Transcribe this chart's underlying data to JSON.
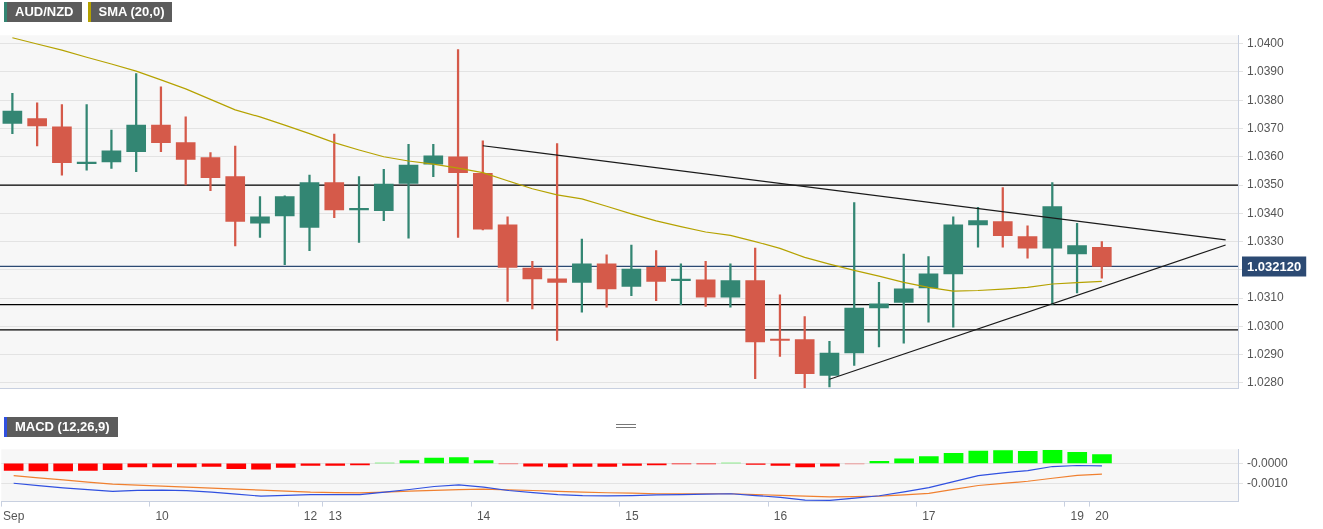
{
  "chart_data": [
    {
      "type": "candlestick",
      "ylim": [
        1.0278,
        1.0403
      ],
      "categories": [
        null,
        null,
        null,
        null,
        null,
        null,
        null,
        null,
        null,
        null,
        null,
        null,
        null,
        null,
        null,
        null,
        null,
        null,
        null,
        null,
        null,
        null,
        null,
        null,
        null,
        null,
        null,
        null,
        null,
        null,
        null,
        null,
        null,
        null,
        null,
        null,
        null,
        null,
        null,
        null,
        null,
        null,
        null,
        null,
        null,
        null,
        null,
        null,
        null,
        null
      ],
      "yticks": [
        {
          "value": 1.028,
          "label": "1.0280"
        },
        {
          "value": 1.029,
          "label": "1.0290"
        },
        {
          "value": 1.03,
          "label": "1.0300"
        },
        {
          "value": 1.031,
          "label": "1.0310"
        },
        {
          "value": 1.032,
          "label": null
        },
        {
          "value": 1.033,
          "label": "1.0330"
        },
        {
          "value": 1.034,
          "label": "1.0340"
        },
        {
          "value": 1.035,
          "label": "1.0350"
        },
        {
          "value": 1.036,
          "label": "1.0360"
        },
        {
          "value": 1.037,
          "label": "1.0370"
        },
        {
          "value": 1.038,
          "label": "1.0380"
        },
        {
          "value": 1.039,
          "label": "1.0390"
        },
        {
          "value": 1.04,
          "label": "1.0400"
        }
      ],
      "grid": "y",
      "legend": "top left",
      "marker": "none",
      "series": [
        {
          "name": "AUD/NZD",
          "color": "#338673",
          "colors": [
            "#338673",
            "#d55a4a",
            "#d55a4a",
            "#338673",
            "#338673",
            "#338673",
            "#d55a4a",
            "#d55a4a",
            "#d55a4a",
            "#d55a4a",
            "#338673",
            "#338673",
            "#338673",
            "#d55a4a",
            "#338673",
            "#338673",
            "#338673",
            "#338673",
            "#d55a4a",
            "#d55a4a",
            "#d55a4a",
            "#d55a4a",
            "#d55a4a",
            "#338673",
            "#d55a4a",
            "#338673",
            "#d55a4a",
            "#338673",
            "#d55a4a",
            "#338673",
            "#d55a4a",
            "#d55a4a",
            "#d55a4a",
            "#338673",
            "#338673",
            "#338673",
            "#338673",
            "#338673",
            "#338673",
            "#338673",
            "#d55a4a",
            "#d55a4a",
            "#338673",
            "#338673",
            "#d55a4a",
            null,
            null,
            null,
            null,
            null
          ],
          "ohlc": [
            [
              1.03718,
              1.03824,
              1.03682,
              1.03762
            ],
            [
              1.03735,
              1.03791,
              1.03638,
              1.03709
            ],
            [
              1.03706,
              1.03785,
              1.03535,
              1.03579
            ],
            [
              1.03576,
              1.03785,
              1.03553,
              1.03579
            ],
            [
              1.03582,
              1.03694,
              1.03559,
              1.03621
            ],
            [
              1.03618,
              1.03894,
              1.03547,
              1.03712
            ],
            [
              1.03712,
              1.03847,
              1.03618,
              1.0365
            ],
            [
              1.0365,
              1.03741,
              1.035,
              1.03591
            ],
            [
              1.03597,
              1.03615,
              1.0348,
              1.03526
            ],
            [
              1.0353,
              1.03638,
              1.03285,
              1.03371
            ],
            [
              1.03365,
              1.03459,
              1.03315,
              1.03388
            ],
            [
              1.03391,
              1.03462,
              1.03218,
              1.03459
            ],
            [
              1.0335,
              1.03535,
              1.03268,
              1.03509
            ],
            [
              1.03509,
              1.0368,
              1.03385,
              1.03412
            ],
            [
              1.03412,
              1.0353,
              1.03297,
              1.03415
            ],
            [
              1.03409,
              1.03556,
              1.03374,
              1.03503
            ],
            [
              1.03506,
              1.03644,
              1.03312,
              1.03571
            ],
            [
              1.03574,
              1.03644,
              1.0353,
              1.03603
            ],
            [
              1.036,
              1.03979,
              1.03315,
              1.03544
            ],
            [
              1.03541,
              1.03656,
              1.03341,
              1.03344
            ],
            [
              1.03359,
              1.03388,
              1.03088,
              1.03209
            ],
            [
              1.03206,
              1.0323,
              1.03062,
              1.03168
            ],
            [
              1.03168,
              1.03647,
              1.0295,
              1.03156
            ],
            [
              1.03156,
              1.03309,
              1.0305,
              1.03221
            ],
            [
              1.03221,
              1.03253,
              1.03068,
              1.03133
            ],
            [
              1.03141,
              1.03288,
              1.03109,
              1.03203
            ],
            [
              1.03209,
              1.03268,
              1.03091,
              1.03159
            ],
            [
              1.03162,
              1.03221,
              1.03077,
              1.03165
            ],
            [
              1.03165,
              1.0323,
              1.03071,
              1.03103
            ],
            [
              1.03103,
              1.03221,
              1.03068,
              1.03162
            ],
            [
              1.03162,
              1.03277,
              1.02815,
              1.02945
            ],
            [
              1.02953,
              1.03112,
              1.02894,
              1.0295
            ],
            [
              1.02953,
              1.03035,
              1.02783,
              1.02833
            ],
            [
              1.02827,
              1.02947,
              1.02786,
              1.02906
            ],
            [
              1.02906,
              1.03438,
              1.02862,
              1.03065
            ],
            [
              1.03065,
              1.03156,
              1.02927,
              1.0308
            ],
            [
              1.03085,
              1.03256,
              1.02941,
              1.03133
            ],
            [
              1.03136,
              1.03247,
              1.03015,
              1.03186
            ],
            [
              1.03186,
              1.03388,
              1.02997,
              1.03359
            ],
            [
              1.03359,
              1.03421,
              1.0328,
              1.03374
            ],
            [
              1.03371,
              1.03491,
              1.0328,
              1.03321
            ],
            [
              1.03318,
              1.03356,
              1.03241,
              1.03277
            ],
            [
              1.03277,
              1.03509,
              1.03077,
              1.03424
            ],
            [
              1.03256,
              1.03365,
              1.03118,
              1.03286
            ],
            [
              1.0328,
              1.033,
              1.03171,
              1.03212
            ],
            null,
            null,
            null,
            null,
            null
          ]
        },
        {
          "name": "SMA (20,0)",
          "type": "line",
          "color": "#b5a200",
          "values": [
            1.04021,
            1.03999,
            1.03977,
            1.03952,
            1.03928,
            1.03903,
            1.03872,
            1.0384,
            1.03803,
            1.03766,
            1.03741,
            1.03712,
            1.03682,
            1.0365,
            1.03624,
            1.036,
            1.03585,
            1.03574,
            1.0356,
            1.03544,
            1.03515,
            1.03487,
            1.03465,
            1.03451,
            1.03425,
            1.03398,
            1.03373,
            1.03353,
            1.03334,
            1.03322,
            1.033,
            1.03276,
            1.03244,
            1.0322,
            1.03198,
            1.03178,
            1.03156,
            1.03138,
            1.03125,
            1.03127,
            1.03132,
            1.03138,
            1.0315,
            1.03155,
            1.03159,
            null,
            null,
            null,
            null,
            null
          ]
        },
        {
          "type": "line",
          "color": "#1a1a1a",
          "values": [
            null,
            null,
            null,
            null,
            null,
            null,
            null,
            null,
            null,
            null,
            null,
            null,
            null,
            null,
            null,
            null,
            null,
            null,
            null,
            1.03639,
            null,
            null,
            null,
            null,
            null,
            null,
            null,
            null,
            null,
            null,
            null,
            null,
            null,
            null,
            null,
            null,
            null,
            null,
            null,
            null,
            null,
            null,
            null,
            null,
            null,
            null,
            null,
            null,
            null,
            1.03306
          ]
        },
        {
          "type": "line",
          "color": "#1a1a1a",
          "values": [
            null,
            null,
            null,
            null,
            null,
            null,
            null,
            null,
            null,
            null,
            null,
            null,
            null,
            null,
            null,
            null,
            null,
            null,
            null,
            null,
            null,
            null,
            null,
            null,
            null,
            null,
            null,
            null,
            null,
            null,
            null,
            null,
            null,
            1.02813,
            null,
            null,
            null,
            null,
            null,
            null,
            null,
            null,
            null,
            null,
            null,
            null,
            null,
            null,
            null,
            1.03288
          ]
        }
      ],
      "ref_lines": [
        {
          "axis": "y",
          "value": 1.035,
          "color": "#000000"
        },
        {
          "axis": "y",
          "value": 1.03077,
          "color": "#000000"
        },
        {
          "axis": "y",
          "value": 1.02988,
          "color": "#000000"
        },
        {
          "axis": "y",
          "value": 1.03212,
          "label": "1.032120",
          "color": "#2c4a73"
        }
      ]
    },
    {
      "type": "bar",
      "ylim": [
        -0.0019,
        0.0007
      ],
      "categories": [
        "Sep",
        null,
        null,
        null,
        null,
        null,
        "10",
        null,
        null,
        null,
        null,
        null,
        "12",
        "13",
        null,
        null,
        null,
        null,
        null,
        "14",
        null,
        null,
        null,
        null,
        null,
        "15",
        null,
        null,
        null,
        null,
        null,
        "16",
        null,
        null,
        null,
        null,
        null,
        "17",
        null,
        null,
        null,
        null,
        null,
        "19",
        "20",
        null,
        null,
        null,
        null,
        null
      ],
      "yticks": [
        {
          "value": 0,
          "label": "-0.0000"
        },
        {
          "value": -0.001,
          "label": "-0.0010"
        }
      ],
      "grid": "y",
      "legend": "top left",
      "marker": "none",
      "series": [
        {
          "values": [
            -0.00035,
            -0.00038,
            -0.00038,
            -0.00035,
            -0.00032,
            -0.00018,
            -0.00018,
            -0.00018,
            -0.00016,
            -0.00026,
            -0.00029,
            -0.00021,
            -0.00011,
            -0.0001,
            -8e-05,
            1e-05,
            0.00014,
            0.00026,
            0.00029,
            0.00014,
            -1e-05,
            -0.00014,
            -0.00018,
            -0.00016,
            -0.00016,
            -0.00011,
            -8e-05,
            -3e-05,
            -3e-05,
            1e-05,
            -6e-05,
            -0.0001,
            -0.00018,
            -0.00014,
            -2e-05,
            0.0001,
            0.00022,
            0.00034,
            0.0005,
            0.00061,
            0.00063,
            0.00059,
            0.00064,
            0.00054,
            0.00043,
            null,
            null,
            null,
            null,
            null
          ],
          "colors": [
            "#ff0000",
            "#ff0000",
            "#ff0000",
            "#ff0000",
            "#ff0000",
            "#ff0000",
            "#ff0000",
            "#ff0000",
            "#ff0000",
            "#ff0000",
            "#ff0000",
            "#ff0000",
            "#ff0000",
            "#ff0000",
            "#ff0000",
            "#90ee90",
            "#00ff00",
            "#00ff00",
            "#00ff00",
            "#00ff00",
            "#f08080",
            "#ff0000",
            "#ff0000",
            "#ff0000",
            "#ff0000",
            "#ff0000",
            "#ff0000",
            "#ff0000",
            "#ff0000",
            "#90ee90",
            "#ff0000",
            "#ff0000",
            "#ff0000",
            "#ff0000",
            "#f08080",
            "#00ff00",
            "#00ff00",
            "#00ff00",
            "#00ff00",
            "#00ff00",
            "#00ff00",
            "#00ff00",
            "#00ff00",
            "#00ff00",
            "#00ff00",
            null,
            null,
            null,
            null,
            null
          ]
        },
        {
          "name": "MACD (12,26,9)",
          "type": "line",
          "color": "#3050e0",
          "values": [
            -0.00099,
            -0.00111,
            -0.00122,
            -0.00131,
            -0.00139,
            -0.00134,
            -0.00133,
            -0.00136,
            -0.00143,
            -0.00153,
            -0.00163,
            -0.00159,
            -0.00155,
            -0.00155,
            -0.00155,
            -0.00143,
            -0.0013,
            -0.00115,
            -0.00107,
            -0.00118,
            -0.00135,
            -0.00145,
            -0.00155,
            -0.0016,
            -0.00162,
            -0.0016,
            -0.00157,
            -0.00155,
            -0.00153,
            -0.00151,
            -0.0016,
            -0.00169,
            -0.00183,
            -0.00184,
            -0.00173,
            -0.00161,
            -0.00142,
            -0.00121,
            -0.00091,
            -0.00061,
            -0.00047,
            -0.00036,
            -0.00016,
            -0.00011,
            -0.00013,
            null,
            null,
            null,
            null,
            null
          ]
        },
        {
          "type": "line",
          "color": "#f08030",
          "values": [
            -0.00061,
            -0.00072,
            -0.00082,
            -0.00093,
            -0.00103,
            -0.00108,
            -0.00113,
            -0.00118,
            -0.00123,
            -0.00128,
            -0.00133,
            -0.00138,
            -0.00143,
            -0.00145,
            -0.00147,
            -0.00143,
            -0.00138,
            -0.00134,
            -0.00131,
            -0.00128,
            -0.00132,
            -0.00135,
            -0.00139,
            -0.00143,
            -0.00146,
            -0.00148,
            -0.00151,
            -0.00151,
            -0.00151,
            -0.00151,
            -0.00155,
            -0.00159,
            -0.00163,
            -0.00167,
            -0.00165,
            -0.00163,
            -0.00157,
            -0.00149,
            -0.00129,
            -0.0011,
            -0.001,
            -0.00089,
            -0.00074,
            -0.0006,
            -0.00054,
            null,
            null,
            null,
            null,
            null
          ]
        }
      ]
    }
  ]
}
